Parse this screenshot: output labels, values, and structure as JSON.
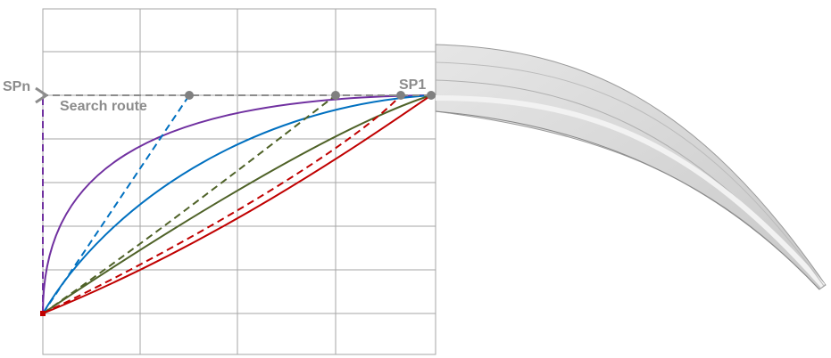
{
  "labels": {
    "sp_n": "SPn",
    "sp_1": "SP1",
    "search_route": "Search route"
  }
}
